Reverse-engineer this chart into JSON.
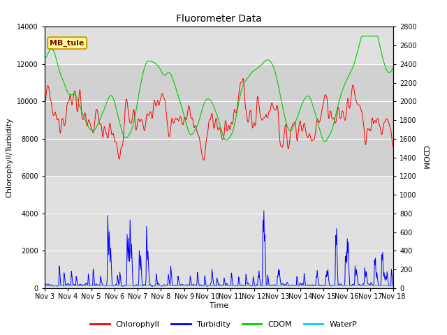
{
  "title": "Fluorometer Data",
  "xlabel": "Time",
  "ylabel_left": "Chlorophyll/Turbidity",
  "ylabel_right": "CDOM",
  "annotation": "MB_tule",
  "x_tick_labels": [
    "Nov 3",
    "Nov 4",
    "Nov 5",
    "Nov 6",
    "Nov 7",
    "Nov 8",
    "Nov 9",
    "Nov 10",
    "Nov 11",
    "Nov 12",
    "Nov 13",
    "Nov 14",
    "Nov 15",
    "Nov 16",
    "Nov 17",
    "Nov 18"
  ],
  "ylim_left": [
    0,
    14000
  ],
  "ylim_right": [
    0,
    2800
  ],
  "colors": {
    "chlorophyll": "#ff0000",
    "turbidity": "#0000ff",
    "cdom": "#00cc00",
    "waterp": "#00ccff",
    "background": "#d8d8d8",
    "grid": "#ffffff"
  },
  "legend_entries": [
    "Chlorophyll",
    "Turbidity",
    "CDOM",
    "WaterP"
  ],
  "shaded_band": [
    6000,
    12000
  ],
  "figure_bg": "#ffffff"
}
